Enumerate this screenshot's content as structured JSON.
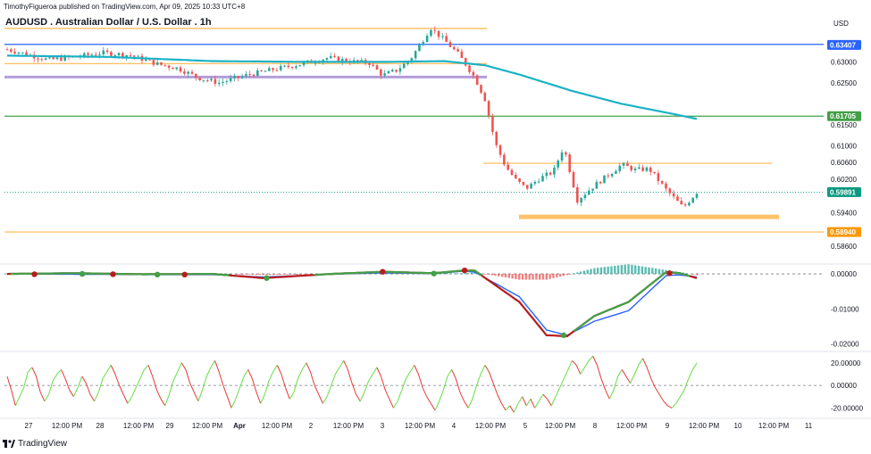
{
  "header": {
    "publisher": "TimothyFigueroa published on TradingView.com, Apr 09, 2025 10:33 UTC+8",
    "title": "AUDUSD . Australian Dollar / U.S. Dollar . 1h",
    "currency": "USD",
    "logo_text": "TradingView"
  },
  "colors": {
    "bull": "#26a69a",
    "bear": "#ef5350",
    "ma_line": "#1ab2c4",
    "orange_level": "#ffb74d",
    "purple_level": "#b39ddb",
    "blue_level": "#2962ff",
    "green_level": "#43a047",
    "badge_blue": "#2962ff",
    "badge_green": "#43a047",
    "badge_current": "#089981",
    "badge_orange": "#ff9800",
    "macd_fast": "#43a047",
    "macd_slow": "#b71c1c",
    "macd_signal": "#2962ff",
    "hist_pos": "#26a69a",
    "hist_neg": "#ef5350",
    "rsi_up": "#66dd44",
    "rsi_down": "#e53935"
  },
  "chart_data": [
    {
      "type": "candlestick",
      "name": "price",
      "ylim": [
        0.5826,
        0.6384
      ],
      "y_ticks": [
        0.63,
        0.625,
        0.615,
        0.61,
        0.602,
        0.594,
        0.586
      ],
      "y_tick_labels": [
        "0.63000",
        "0.62500",
        "0.61500",
        "0.61000",
        "0.60200",
        "0.59400",
        "0.58600"
      ],
      "price_badges": [
        {
          "label": "0.63407",
          "value": 0.63407,
          "kind": "blue"
        },
        {
          "label": "0.61705",
          "value": 0.61705,
          "kind": "green"
        },
        {
          "label": "0.60600",
          "value": 0.606,
          "kind": "plain"
        },
        {
          "label": "0.59891",
          "value": 0.59891,
          "kind": "current"
        },
        {
          "label": "0.58940",
          "value": 0.5894,
          "kind": "orange"
        }
      ],
      "levels": [
        {
          "value": 0.638,
          "x_from": 5,
          "x_to": 545,
          "kind": "orange_level"
        },
        {
          "value": 0.6342,
          "x_from": 5,
          "x_to": 922,
          "kind": "blue_level"
        },
        {
          "value": 0.6296,
          "x_from": 5,
          "x_to": 545,
          "kind": "orange_level"
        },
        {
          "value": 0.6264,
          "x_from": 5,
          "x_to": 545,
          "kind": "purple_level"
        },
        {
          "value": 0.61705,
          "x_from": 5,
          "x_to": 922,
          "kind": "green_level"
        },
        {
          "value": 0.6058,
          "x_from": 541,
          "x_to": 864,
          "kind": "orange_level"
        },
        {
          "value": 0.593,
          "x_from": 581,
          "x_to": 872,
          "kind": "orange_zone",
          "thickness": 5
        },
        {
          "value": 0.5894,
          "x_from": 5,
          "x_to": 922,
          "kind": "orange_level"
        }
      ],
      "x_ticks": [
        "27",
        "12:00 PM",
        "28",
        "12:00 PM",
        "29",
        "12:00 PM",
        "Apr",
        "12:00 PM",
        "2",
        "12:00 PM",
        "3",
        "12:00 PM",
        "4",
        "12:00 PM",
        "5",
        "12:00 PM",
        "8",
        "12:00 PM",
        "9",
        "12:00 PM",
        "10",
        "12:00 PM",
        "11"
      ],
      "candle_count": 180,
      "close_path": [
        [
          0,
          0.633
        ],
        [
          6,
          0.6318
        ],
        [
          12,
          0.6305
        ],
        [
          20,
          0.6312
        ],
        [
          28,
          0.6322
        ],
        [
          36,
          0.6316
        ],
        [
          44,
          0.6295
        ],
        [
          50,
          0.6285
        ],
        [
          56,
          0.6262
        ],
        [
          62,
          0.625
        ],
        [
          70,
          0.6268
        ],
        [
          78,
          0.6282
        ],
        [
          86,
          0.6295
        ],
        [
          94,
          0.631
        ],
        [
          100,
          0.6302
        ],
        [
          106,
          0.6298
        ],
        [
          110,
          0.6268
        ],
        [
          114,
          0.628
        ],
        [
          118,
          0.6305
        ],
        [
          122,
          0.6355
        ],
        [
          124,
          0.6382
        ],
        [
          128,
          0.6352
        ],
        [
          132,
          0.632
        ],
        [
          134,
          0.6298
        ],
        [
          137,
          0.6262
        ],
        [
          140,
          0.621
        ],
        [
          143,
          0.6105
        ],
        [
          146,
          0.605
        ],
        [
          149,
          0.6018
        ],
        [
          152,
          0.5998
        ],
        [
          156,
          0.6022
        ],
        [
          160,
          0.6038
        ],
        [
          163,
          0.6098
        ],
        [
          167,
          0.597
        ],
        [
          172,
          0.6005
        ],
        [
          176,
          0.603
        ],
        [
          180,
          0.6055
        ],
        [
          184,
          0.6042
        ],
        [
          188,
          0.6045
        ],
        [
          193,
          0.5995
        ],
        [
          198,
          0.5952
        ],
        [
          202,
          0.5989
        ]
      ],
      "ma_path": [
        [
          0,
          0.6315
        ],
        [
          30,
          0.6312
        ],
        [
          60,
          0.6302
        ],
        [
          90,
          0.63
        ],
        [
          110,
          0.63
        ],
        [
          128,
          0.6302
        ],
        [
          140,
          0.6292
        ],
        [
          150,
          0.627
        ],
        [
          165,
          0.6232
        ],
        [
          180,
          0.62
        ],
        [
          195,
          0.6176
        ],
        [
          202,
          0.6164
        ]
      ]
    },
    {
      "type": "line",
      "name": "macd",
      "ylim": [
        -0.0211,
        0.0018
      ],
      "y_ticks": [
        0.0,
        -0.01,
        -0.02
      ],
      "y_tick_labels": [
        "0.00000",
        "-0.01000",
        "-0.02000"
      ],
      "fast_path": [
        [
          0,
          0.0
        ],
        [
          20,
          0.0002
        ],
        [
          40,
          -0.0001
        ],
        [
          60,
          0.0
        ],
        [
          75,
          -0.0012
        ],
        [
          95,
          0.0
        ],
        [
          110,
          0.0006
        ],
        [
          125,
          0.0002
        ],
        [
          134,
          0.001
        ],
        [
          137,
          0.0009
        ],
        [
          150,
          -0.008
        ],
        [
          158,
          -0.0175
        ],
        [
          164,
          -0.0178
        ],
        [
          172,
          -0.012
        ],
        [
          182,
          -0.008
        ],
        [
          193,
          0.0005
        ],
        [
          197,
          0.0002
        ],
        [
          202,
          -0.0012
        ]
      ],
      "slow_path": [
        [
          0,
          0.0
        ],
        [
          20,
          -0.0001
        ],
        [
          40,
          -0.0002
        ],
        [
          60,
          -0.0002
        ],
        [
          75,
          -0.0009
        ],
        [
          95,
          -0.0001
        ],
        [
          110,
          0.0003
        ],
        [
          125,
          0.0001
        ],
        [
          134,
          0.0008
        ],
        [
          137,
          0.0005
        ],
        [
          150,
          -0.0065
        ],
        [
          158,
          -0.016
        ],
        [
          164,
          -0.0175
        ],
        [
          172,
          -0.0135
        ],
        [
          182,
          -0.0105
        ],
        [
          193,
          -0.0005
        ],
        [
          197,
          -0.0003
        ],
        [
          202,
          -0.0009
        ]
      ],
      "dots": [
        {
          "i": 8,
          "v": -0.0001,
          "kind": "bear"
        },
        {
          "i": 22,
          "v": 0.0,
          "kind": "bull"
        },
        {
          "i": 31,
          "v": -0.0001,
          "kind": "bear"
        },
        {
          "i": 44,
          "v": -0.0002,
          "kind": "bull"
        },
        {
          "i": 52,
          "v": -0.0002,
          "kind": "bear"
        },
        {
          "i": 76,
          "v": -0.0012,
          "kind": "bull"
        },
        {
          "i": 110,
          "v": 0.0006,
          "kind": "bear"
        },
        {
          "i": 125,
          "v": 0.0001,
          "kind": "bull"
        },
        {
          "i": 134,
          "v": 0.001,
          "kind": "bear"
        },
        {
          "i": 163,
          "v": -0.0175,
          "kind": "bull"
        },
        {
          "i": 194,
          "v": 0.0002,
          "kind": "bear"
        }
      ]
    },
    {
      "type": "line",
      "name": "oscillator",
      "ylim": [
        -26,
        27
      ],
      "y_ticks": [
        20,
        0,
        -20
      ],
      "y_tick_labels": [
        "20.00000",
        "0.00000",
        "-20.00000"
      ],
      "values": [
        8,
        -4,
        -18,
        -10,
        -2,
        12,
        16,
        8,
        -6,
        -14,
        -8,
        4,
        10,
        14,
        6,
        -4,
        -10,
        -2,
        8,
        2,
        -8,
        -14,
        -6,
        6,
        12,
        18,
        10,
        0,
        -8,
        -16,
        -10,
        -2,
        6,
        14,
        18,
        8,
        -4,
        -12,
        -18,
        -8,
        4,
        12,
        20,
        14,
        2,
        -6,
        -14,
        -4,
        8,
        16,
        22,
        12,
        0,
        -10,
        -20,
        -12,
        -2,
        8,
        14,
        6,
        -6,
        -16,
        -8,
        4,
        12,
        18,
        10,
        -2,
        -12,
        -6,
        6,
        14,
        20,
        12,
        0,
        -8,
        -16,
        -10,
        0,
        10,
        16,
        22,
        14,
        2,
        -8,
        -14,
        -6,
        4,
        10,
        16,
        8,
        -4,
        -12,
        -20,
        -14,
        -4,
        6,
        12,
        18,
        10,
        -2,
        -10,
        -16,
        -22,
        -14,
        -4,
        8,
        14,
        6,
        -6,
        -14,
        -20,
        -12,
        0,
        10,
        18,
        12,
        2,
        -8,
        -16,
        -22,
        -18,
        -24,
        -16,
        -10,
        -18,
        -12,
        -20,
        -14,
        -8,
        -12,
        -18,
        -10,
        -2,
        6,
        14,
        22,
        18,
        10,
        16,
        22,
        26,
        18,
        6,
        -4,
        -12,
        -4,
        8,
        14,
        8,
        2,
        10,
        18,
        24,
        16,
        6,
        -2,
        -8,
        -14,
        -18,
        -20,
        -16,
        -10,
        -4,
        6,
        14,
        20
      ]
    }
  ]
}
